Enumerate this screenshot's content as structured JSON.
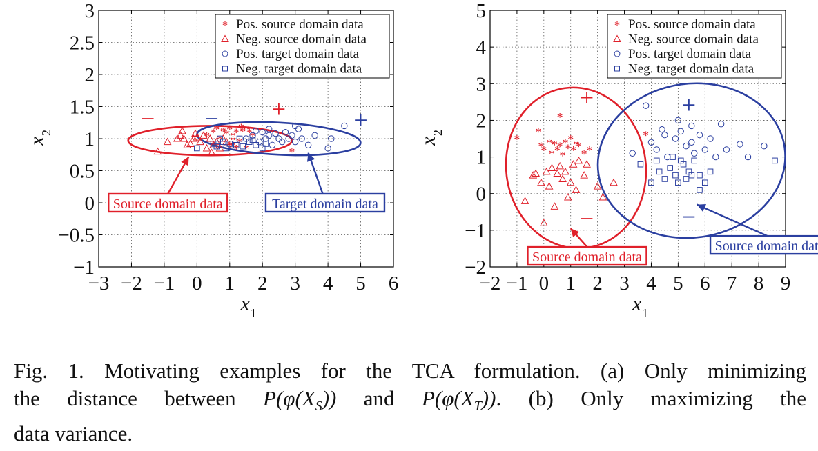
{
  "chart_data": [
    {
      "type": "scatter",
      "xlim": [
        -3,
        6
      ],
      "ylim": [
        -1,
        3
      ],
      "xticks": [
        "−3",
        "−2",
        "−1",
        "0",
        "1",
        "2",
        "3",
        "4",
        "5",
        "6"
      ],
      "yticks": [
        "−1",
        "−0.5",
        "0",
        "0.5",
        "1",
        "1.5",
        "2",
        "2.5",
        "3"
      ],
      "xlabel_main": "x",
      "xlabel_sub": "1",
      "ylabel_main": "x",
      "ylabel_sub": "2",
      "grid": true,
      "legend_position": "top-right",
      "legend": [
        "Pos. source domain data",
        "Neg. source domain data",
        "Pos. target domain data",
        "Neg. target domain data"
      ],
      "colors": {
        "source": "#e0202a",
        "target": "#2b3fa0"
      },
      "series": [
        {
          "name": "Pos. source domain data",
          "marker": "star",
          "color": "#e0202a",
          "points": [
            [
              0.3,
              1.05
            ],
            [
              0.5,
              1.1
            ],
            [
              0.7,
              1.0
            ],
            [
              0.8,
              1.12
            ],
            [
              1.0,
              1.15
            ],
            [
              1.1,
              1.05
            ],
            [
              1.2,
              1.1
            ],
            [
              1.3,
              0.95
            ],
            [
              1.4,
              1.12
            ],
            [
              1.5,
              1.15
            ],
            [
              1.6,
              1.1
            ],
            [
              1.2,
              0.85
            ],
            [
              1.5,
              0.85
            ],
            [
              1.7,
              1.05
            ],
            [
              0.9,
              1.08
            ],
            [
              1.0,
              0.9
            ],
            [
              2.9,
              0.8
            ],
            [
              0.6,
              1.15
            ],
            [
              1.35,
              1.18
            ],
            [
              1.1,
              0.98
            ]
          ]
        },
        {
          "name": "Neg. source domain data",
          "marker": "triangle",
          "color": "#e0202a",
          "points": [
            [
              -1.2,
              0.8
            ],
            [
              -0.9,
              0.95
            ],
            [
              -0.6,
              1.0
            ],
            [
              -0.5,
              1.05
            ],
            [
              -0.4,
              1.0
            ],
            [
              -0.3,
              0.9
            ],
            [
              -0.2,
              0.92
            ],
            [
              -0.1,
              1.0
            ],
            [
              0.0,
              1.02
            ],
            [
              0.1,
              0.95
            ],
            [
              0.3,
              0.85
            ],
            [
              0.4,
              1.0
            ],
            [
              0.5,
              0.9
            ],
            [
              0.6,
              0.95
            ],
            [
              0.7,
              0.85
            ],
            [
              0.8,
              1.0
            ],
            [
              0.9,
              0.95
            ],
            [
              1.1,
              0.9
            ],
            [
              -0.05,
              1.08
            ],
            [
              0.2,
              1.05
            ],
            [
              0.45,
              0.78
            ],
            [
              -0.45,
              1.12
            ]
          ]
        },
        {
          "name": "Pos. target domain data",
          "marker": "circle",
          "color": "#2b3fa0",
          "points": [
            [
              1.5,
              1.0
            ],
            [
              1.7,
              1.05
            ],
            [
              1.9,
              0.95
            ],
            [
              2.0,
              1.1
            ],
            [
              2.1,
              1.0
            ],
            [
              2.2,
              1.05
            ],
            [
              2.3,
              0.9
            ],
            [
              2.4,
              1.08
            ],
            [
              2.5,
              1.0
            ],
            [
              2.6,
              0.95
            ],
            [
              2.7,
              1.1
            ],
            [
              2.8,
              1.0
            ],
            [
              2.9,
              1.05
            ],
            [
              3.0,
              0.95
            ],
            [
              3.1,
              1.15
            ],
            [
              3.2,
              1.0
            ],
            [
              3.4,
              0.9
            ],
            [
              3.6,
              1.05
            ],
            [
              4.0,
              0.85
            ],
            [
              4.1,
              1.0
            ],
            [
              4.5,
              1.2
            ],
            [
              3.0,
              1.2
            ],
            [
              2.2,
              1.15
            ],
            [
              1.8,
              1.12
            ]
          ]
        },
        {
          "name": "Neg. target domain data",
          "marker": "square",
          "color": "#2b3fa0",
          "points": [
            [
              0.0,
              0.85
            ],
            [
              0.5,
              0.92
            ],
            [
              0.6,
              0.88
            ],
            [
              0.8,
              0.95
            ],
            [
              0.9,
              0.85
            ],
            [
              1.0,
              0.92
            ],
            [
              1.2,
              0.9
            ],
            [
              1.4,
              0.88
            ],
            [
              1.6,
              0.95
            ],
            [
              1.8,
              0.9
            ],
            [
              2.0,
              0.85
            ],
            [
              2.1,
              0.92
            ],
            [
              1.3,
              1.0
            ],
            [
              1.7,
              0.98
            ],
            [
              0.7,
              1.0
            ]
          ]
        }
      ],
      "ellipses": [
        {
          "series": "source",
          "cx": 0.4,
          "cy": 0.97,
          "rx": 2.5,
          "ry": 0.23,
          "angle": 0
        },
        {
          "series": "target",
          "cx": 2.5,
          "cy": 1.0,
          "rx": 2.5,
          "ry": 0.25,
          "angle": 3
        }
      ],
      "markers": [
        {
          "text": "−",
          "x": -1.5,
          "y": 1.3,
          "color": "#e0202a"
        },
        {
          "text": "−",
          "x": 0.45,
          "y": 1.3,
          "color": "#2b3fa0"
        },
        {
          "text": "+",
          "x": 2.5,
          "y": 1.45,
          "color": "#e0202a"
        },
        {
          "text": "+",
          "x": 5.0,
          "y": 1.28,
          "color": "#2b3fa0"
        }
      ],
      "annotations": [
        {
          "text": "Source domain data",
          "box_x": -2.7,
          "box_y": 0,
          "color": "#e0202a",
          "arrow_to": [
            -0.25,
            0.72
          ]
        },
        {
          "text": "Target domain data",
          "box_x": 2.1,
          "box_y": 0,
          "color": "#2b3fa0",
          "arrow_to": [
            3.4,
            0.78
          ]
        }
      ]
    },
    {
      "type": "scatter",
      "xlim": [
        -2,
        9
      ],
      "ylim": [
        -2,
        5
      ],
      "xticks": [
        "−2",
        "−1",
        "0",
        "1",
        "2",
        "3",
        "4",
        "5",
        "6",
        "7",
        "8",
        "9"
      ],
      "yticks": [
        "−2",
        "−1",
        "0",
        "1",
        "2",
        "3",
        "4",
        "5"
      ],
      "xlabel_main": "x",
      "xlabel_sub": "1",
      "ylabel_main": "x",
      "ylabel_sub": "2",
      "grid": true,
      "legend_position": "top-right",
      "legend": [
        "Pos. source domain data",
        "Neg. source domain data",
        "Pos. target domain data",
        "Neg. target domain data"
      ],
      "colors": {
        "source": "#e0202a",
        "target": "#2b3fa0"
      },
      "series": [
        {
          "name": "Pos. source domain data",
          "marker": "star",
          "color": "#e0202a",
          "points": [
            [
              -1.0,
              1.5
            ],
            [
              -0.2,
              1.7
            ],
            [
              -0.1,
              1.3
            ],
            [
              0.0,
              1.2
            ],
            [
              0.2,
              1.4
            ],
            [
              0.3,
              1.1
            ],
            [
              0.4,
              1.35
            ],
            [
              0.5,
              1.2
            ],
            [
              0.6,
              1.3
            ],
            [
              0.7,
              1.05
            ],
            [
              0.8,
              1.4
            ],
            [
              0.9,
              1.25
            ],
            [
              1.0,
              1.5
            ],
            [
              1.1,
              1.2
            ],
            [
              1.3,
              1.3
            ],
            [
              1.5,
              1.1
            ],
            [
              1.7,
              1.2
            ],
            [
              0.6,
              2.1
            ],
            [
              3.8,
              1.6
            ],
            [
              1.2,
              1.35
            ]
          ]
        },
        {
          "name": "Neg. source domain data",
          "marker": "triangle",
          "color": "#e0202a",
          "points": [
            [
              -0.7,
              -0.2
            ],
            [
              -0.4,
              0.5
            ],
            [
              -0.1,
              0.3
            ],
            [
              0.0,
              -0.8
            ],
            [
              0.1,
              0.6
            ],
            [
              0.2,
              0.2
            ],
            [
              0.3,
              0.7
            ],
            [
              0.5,
              0.55
            ],
            [
              0.6,
              0.75
            ],
            [
              0.7,
              0.4
            ],
            [
              0.8,
              0.6
            ],
            [
              1.0,
              0.3
            ],
            [
              1.1,
              0.8
            ],
            [
              1.2,
              0.1
            ],
            [
              1.3,
              0.9
            ],
            [
              1.5,
              0.5
            ],
            [
              1.6,
              0.8
            ],
            [
              2.0,
              0.2
            ],
            [
              2.2,
              -0.1
            ],
            [
              -0.3,
              0.55
            ],
            [
              0.9,
              -0.1
            ],
            [
              2.6,
              0.3
            ],
            [
              0.4,
              -0.35
            ]
          ]
        },
        {
          "name": "Pos. target domain data",
          "marker": "circle",
          "color": "#2b3fa0",
          "points": [
            [
              3.3,
              1.1
            ],
            [
              3.8,
              2.4
            ],
            [
              4.0,
              1.4
            ],
            [
              4.2,
              1.2
            ],
            [
              4.5,
              1.6
            ],
            [
              4.6,
              1.0
            ],
            [
              4.9,
              1.5
            ],
            [
              5.1,
              1.7
            ],
            [
              5.3,
              1.3
            ],
            [
              5.5,
              1.4
            ],
            [
              5.6,
              1.1
            ],
            [
              5.8,
              1.6
            ],
            [
              6.0,
              1.2
            ],
            [
              6.2,
              1.5
            ],
            [
              6.4,
              1.0
            ],
            [
              6.6,
              1.9
            ],
            [
              6.8,
              1.2
            ],
            [
              7.3,
              1.35
            ],
            [
              7.6,
              1.0
            ],
            [
              8.2,
              1.3
            ],
            [
              5.0,
              2.0
            ],
            [
              5.5,
              1.85
            ],
            [
              4.4,
              1.75
            ]
          ]
        },
        {
          "name": "Neg. target domain data",
          "marker": "square",
          "color": "#2b3fa0",
          "points": [
            [
              3.6,
              0.8
            ],
            [
              4.0,
              0.3
            ],
            [
              4.3,
              0.6
            ],
            [
              4.5,
              0.4
            ],
            [
              4.7,
              0.7
            ],
            [
              4.9,
              0.5
            ],
            [
              5.0,
              0.3
            ],
            [
              5.2,
              0.8
            ],
            [
              5.3,
              0.4
            ],
            [
              5.4,
              0.6
            ],
            [
              5.5,
              0.5
            ],
            [
              5.6,
              0.9
            ],
            [
              5.8,
              0.5
            ],
            [
              6.0,
              0.3
            ],
            [
              6.2,
              0.6
            ],
            [
              5.8,
              0.1
            ],
            [
              8.6,
              0.9
            ],
            [
              4.2,
              0.9
            ],
            [
              5.1,
              0.9
            ],
            [
              4.8,
              1.0
            ]
          ]
        }
      ],
      "ellipses": [
        {
          "series": "source",
          "cx": 1.2,
          "cy": 0.7,
          "rx": 2.6,
          "ry": 2.2,
          "angle": -8
        },
        {
          "series": "target",
          "cx": 5.5,
          "cy": 0.9,
          "rx": 3.5,
          "ry": 2.1,
          "angle": -8
        }
      ],
      "markers": [
        {
          "text": "+",
          "x": 1.6,
          "y": 2.6,
          "color": "#e0202a"
        },
        {
          "text": "−",
          "x": 1.6,
          "y": -0.7,
          "color": "#e0202a"
        },
        {
          "text": "+",
          "x": 5.4,
          "y": 2.4,
          "color": "#2b3fa0"
        },
        {
          "text": "−",
          "x": 5.4,
          "y": -0.65,
          "color": "#2b3fa0"
        }
      ],
      "annotations": [
        {
          "text": "Source domain data",
          "box_x": -0.6,
          "box_y": -1.7,
          "color": "#e0202a",
          "arrow_to": [
            1.0,
            -0.95
          ]
        },
        {
          "text": "Source domain data",
          "box_x": 6.2,
          "box_y": -1.4,
          "color": "#2b3fa0",
          "arrow_to": [
            5.7,
            -0.3
          ]
        }
      ]
    }
  ],
  "caption": {
    "text": "Fig. 1.   Motivating examples for the TCA formulation. (a) Only minimizing the distance between P(φ(X_S)) and P(φ(X_T)). (b) Only maximizing the data variance.",
    "line1": "Fig. 1.   Motivating examples for the TCA formulation. (a) Only minimizing",
    "line2_a": "the distance between",
    "line2_b": "and",
    "line2_c": ". (b) Only maximizing the",
    "line3": "data variance.",
    "math1": "P(φ(X",
    "math1_sub": "S",
    "math1_end": "))",
    "math2": "P(φ(X",
    "math2_sub": "T",
    "math2_end": "))"
  }
}
